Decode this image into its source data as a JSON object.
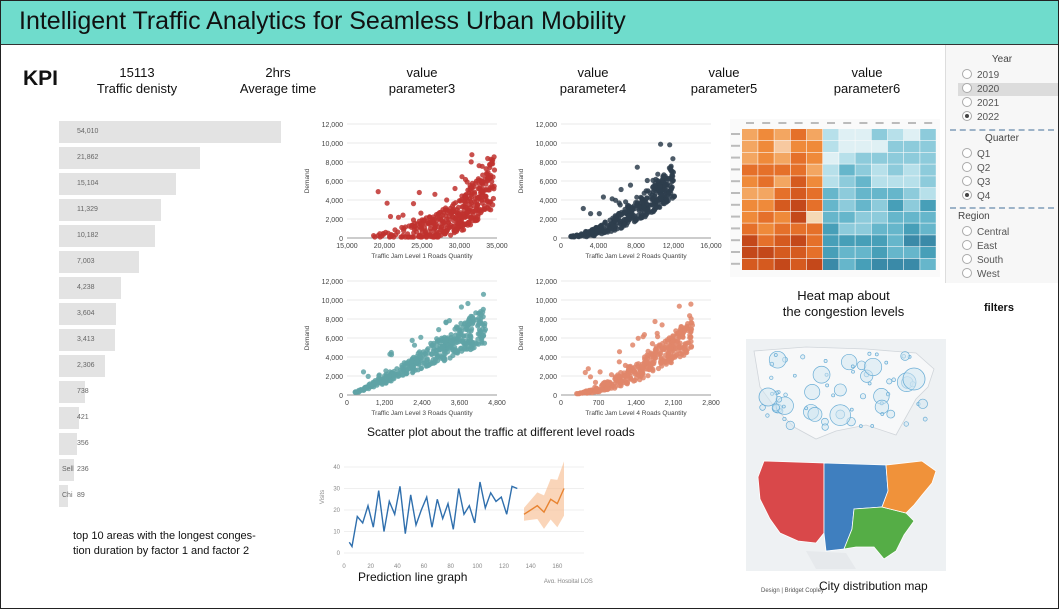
{
  "title": "Intelligent Traffic Analytics for Seamless Urban Mobility",
  "kpi_label": "KPI",
  "kpis": [
    {
      "value": "15113",
      "label": "Traffic denisty"
    },
    {
      "value": "2hrs",
      "label": "Average time"
    },
    {
      "value": "value",
      "label": "parameter3"
    },
    {
      "value": "value",
      "label": "parameter4"
    },
    {
      "value": "value",
      "label": "parameter5"
    },
    {
      "value": "value",
      "label": "parameter6"
    }
  ],
  "bar_chart": {
    "values": [
      "54,010",
      "21,862",
      "15,104",
      "11,329",
      "10,182",
      "7,003",
      "4,238",
      "3,604",
      "3,413",
      "2,306",
      "738",
      "421",
      "356",
      "236",
      "89"
    ],
    "side_labels": [
      "",
      "",
      "",
      "",
      "",
      "",
      "",
      "",
      "",
      "",
      "",
      "",
      "",
      "Sell",
      "Chi"
    ],
    "caption_line1": "top 10 areas with the longest conges-",
    "caption_line2": "tion duration by factor 1 and factor 2"
  },
  "scatter_caption": "Scatter plot about the  traffic at different level roads",
  "chart_data": [
    {
      "type": "scatter",
      "title": "",
      "xlabel": "Traffic Jam Level 1 Roads Quantity",
      "ylabel": "Demand",
      "xlim": [
        15000,
        35000
      ],
      "ylim": [
        0,
        12000
      ],
      "xticks": [
        "15,000",
        "20,000",
        "25,000",
        "30,000",
        "35,000"
      ],
      "yticks": [
        "0",
        "2,000",
        "4,000",
        "6,000",
        "8,000",
        "10,000",
        "12,000"
      ],
      "color": "#c0312e"
    },
    {
      "type": "scatter",
      "title": "",
      "xlabel": "Traffic Jam Level 2 Roads Quantity",
      "ylabel": "Demand",
      "xlim": [
        0,
        16000
      ],
      "ylim": [
        0,
        12000
      ],
      "xticks": [
        "0",
        "4,000",
        "8,000",
        "12,000",
        "16,000"
      ],
      "yticks": [
        "0",
        "2,000",
        "4,000",
        "6,000",
        "8,000",
        "10,000",
        "12,000"
      ],
      "color": "#2e3e4e"
    },
    {
      "type": "scatter",
      "title": "",
      "xlabel": "Traffic Jam Level 3 Roads Quantity",
      "ylabel": "Demand",
      "xlim": [
        0,
        4800
      ],
      "ylim": [
        0,
        12000
      ],
      "xticks": [
        "0",
        "1,200",
        "2,400",
        "3,600",
        "4,800"
      ],
      "yticks": [
        "0",
        "2,000",
        "4,000",
        "6,000",
        "8,000",
        "10,000",
        "12,000"
      ],
      "color": "#5fa3a6"
    },
    {
      "type": "scatter",
      "title": "",
      "xlabel": "Traffic Jam Level 4 Roads Quantity",
      "ylabel": "Demand",
      "xlim": [
        0,
        2800
      ],
      "ylim": [
        0,
        12000
      ],
      "xticks": [
        "0",
        "700",
        "1,400",
        "2,100",
        "2,800"
      ],
      "yticks": [
        "0",
        "2,000",
        "4,000",
        "6,000",
        "8,000",
        "10,000",
        "12,000"
      ],
      "color": "#e0866a"
    },
    {
      "type": "line",
      "title": "",
      "xlabel": "",
      "ylabel": "Visits",
      "xlim": [
        0,
        180
      ],
      "ylim": [
        0,
        40
      ],
      "xticks": [
        "0",
        "20",
        "40",
        "60",
        "80",
        "100",
        "120",
        "140",
        "160"
      ],
      "yticks": [
        "0",
        "10",
        "20",
        "30",
        "40"
      ],
      "legend": "Avg. Hospital LOS Days",
      "series": [
        {
          "name": "",
          "color": "#2f6fad",
          "x": [
            4,
            6,
            10,
            14,
            18,
            22,
            26,
            30,
            34,
            38,
            42,
            46,
            50,
            54,
            58,
            62,
            66,
            70,
            74,
            78,
            82,
            86,
            90,
            94,
            98,
            102,
            106,
            110,
            114,
            118,
            122,
            126,
            130
          ],
          "values": [
            5,
            3,
            17,
            14,
            22,
            12,
            29,
            10,
            24,
            18,
            31,
            9,
            27,
            13,
            20,
            26,
            12,
            25,
            16,
            23,
            11,
            30,
            18,
            22,
            14,
            33,
            21,
            28,
            24,
            26,
            18,
            31,
            30
          ]
        },
        {
          "name": "",
          "color": "#e88330",
          "x": [
            135,
            140,
            145,
            150,
            155,
            160,
            165
          ],
          "values": [
            18,
            20,
            22,
            19,
            25,
            23,
            30
          ]
        }
      ]
    }
  ],
  "heatmap_caption_line1": "Heat map about",
  "heatmap_caption_line2": "the congestion levels",
  "filters_caption": "filters",
  "filters": {
    "year_label": "Year",
    "years": [
      "2019",
      "2020",
      "2021",
      "2022"
    ],
    "quarter_label": "Quarter",
    "quarters": [
      "Q1",
      "Q2",
      "Q3",
      "Q4"
    ],
    "region_label": "Region",
    "regions": [
      "Central",
      "East",
      "South",
      "West"
    ]
  },
  "prediction_caption": "Prediction line graph",
  "map_caption": "City distribution map",
  "map_footer": "Design | Bridget Copley",
  "map_colors": {
    "west": "#d9484a",
    "central": "#3f7fbf",
    "south": "#55ad46",
    "east": "#f0923a"
  }
}
